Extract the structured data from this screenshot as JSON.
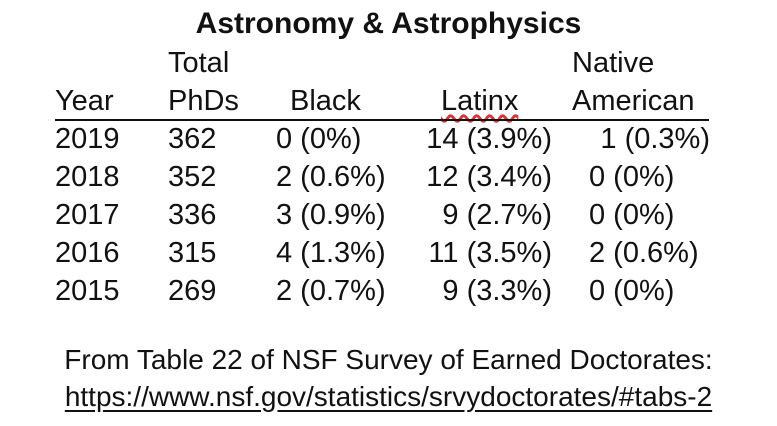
{
  "title": "Astronomy & Astrophysics",
  "headers": {
    "year": [
      "",
      "Year"
    ],
    "total": [
      "Total",
      "PhDs"
    ],
    "black": [
      "",
      "Black"
    ],
    "latinx": [
      "",
      "Latinx"
    ],
    "native": [
      "Native",
      "American"
    ]
  },
  "rows": [
    {
      "year": "2019",
      "total": "362",
      "black": "0 (0%)",
      "latinx": "14 (3.9%)",
      "native": "1 (0.3%)"
    },
    {
      "year": "2018",
      "total": "352",
      "black": "2 (0.6%)",
      "latinx": "12 (3.4%)",
      "native": "0 (0%)"
    },
    {
      "year": "2017",
      "total": "336",
      "black": "3 (0.9%)",
      "latinx": "9 (2.7%)",
      "native": "0 (0%)"
    },
    {
      "year": "2016",
      "total": "315",
      "black": "4 (1.3%)",
      "latinx": "11 (3.5%)",
      "native": "2 (0.6%)"
    },
    {
      "year": "2015",
      "total": "269",
      "black": "2 (0.7%)",
      "latinx": "9 (3.3%)",
      "native": "0 (0%)"
    }
  ],
  "source": {
    "line1": "From Table 22 of NSF Survey of Earned Doctorates:",
    "link": "https://www.nsf.gov/statistics/srvydoctorates/#tabs-2"
  }
}
